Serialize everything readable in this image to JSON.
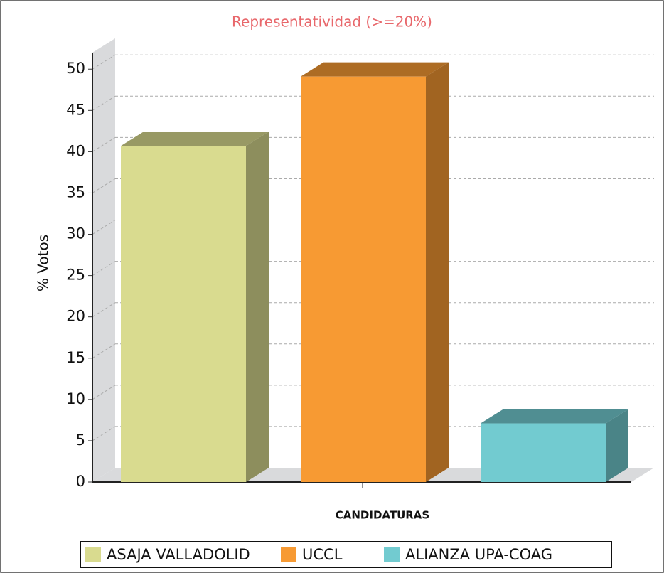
{
  "chart_data": {
    "type": "bar3d",
    "title": "Representatividad (>=20%)",
    "xlabel": "CANDIDATURAS",
    "ylabel": "% Votos",
    "categories": [
      "ASAJA VALLADOLID",
      "UCCL",
      "ALIANZA UPA-COAG"
    ],
    "values": [
      40.7,
      49.1,
      7.1
    ],
    "colors": [
      "#d9db8f",
      "#f79a33",
      "#72cbd0"
    ],
    "ylim": [
      0,
      52
    ],
    "yticks": [
      0,
      5,
      10,
      15,
      20,
      25,
      30,
      35,
      40,
      45,
      50
    ],
    "grid": true,
    "legend": "bottom"
  }
}
